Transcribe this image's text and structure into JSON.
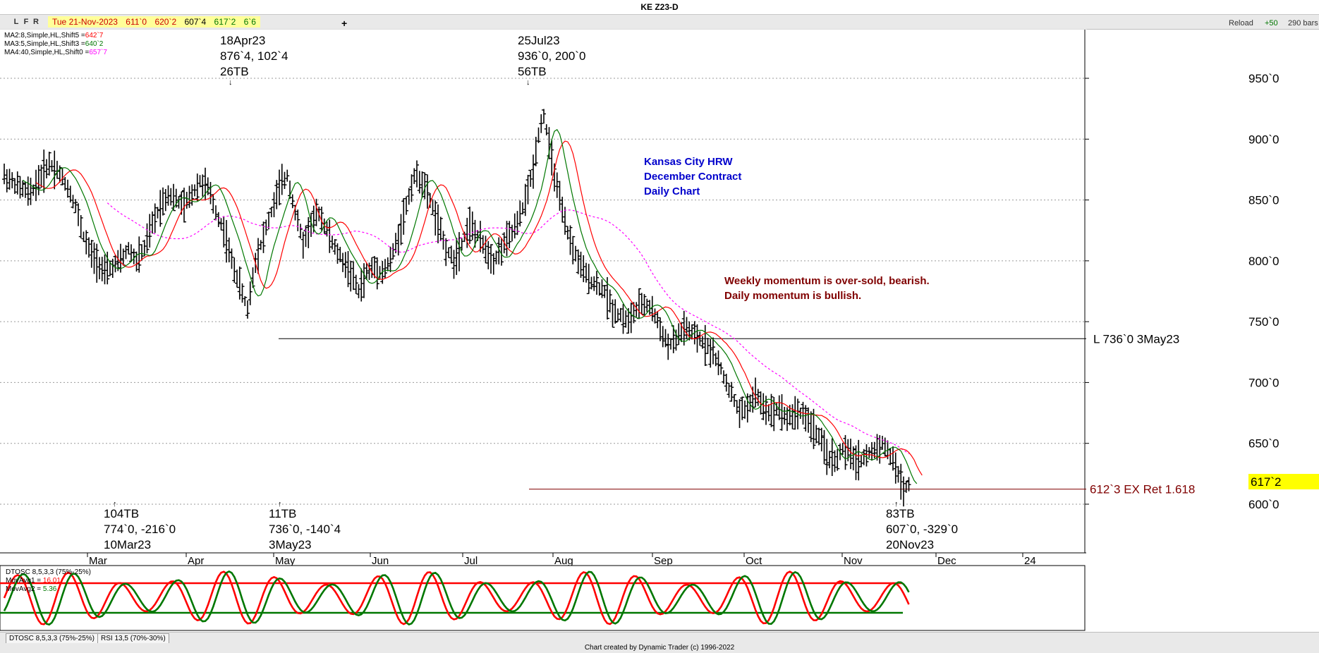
{
  "header": {
    "title": "KE Z23-D",
    "toolbar_buttons": [
      "L",
      "F",
      "R"
    ],
    "quote_date": "Tue 21-Nov-2023",
    "quote_open": "611`0",
    "quote_high": "620`2",
    "quote_low": "607`4",
    "quote_close": "617`2",
    "quote_change": "6`6",
    "plus_tab": "+",
    "reload": "Reload",
    "plus50": "+50",
    "bars": "290 bars"
  },
  "legend": {
    "ma2": "MA2:8,Simple,HL,Shift5 =",
    "ma2_val": "642`7",
    "ma3": "MA3:5,Simple,HL,Shift3 =",
    "ma3_val": "640`2",
    "ma4": "MA4:40,Simple,HL,Shift0 =",
    "ma4_val": "657`7"
  },
  "annotations": {
    "hi1_date": "18Apr23",
    "hi1_val": "876`4, 102`4",
    "hi1_tb": "26TB",
    "hi2_date": "25Jul23",
    "hi2_val": "936`0, 200`0",
    "hi2_tb": "56TB",
    "lo1_tb": "104TB",
    "lo1_val": "774`0, -216`0",
    "lo1_date": "10Mar23",
    "lo2_tb": "11TB",
    "lo2_val": "736`0, -140`4",
    "lo2_date": "3May23",
    "lo3_tb": "83TB",
    "lo3_val": "607`0, -329`0",
    "lo3_date": "20Nov23",
    "title1": "Kansas City HRW",
    "title2": "December Contract",
    "title3": "Daily Chart",
    "comment1": "Weekly momentum is over-sold, bearish.",
    "comment2": "Daily momentum is bullish.",
    "line_low_label": "L 736`0 3May23",
    "line_ret_label": "612`3 EX Ret 1.618",
    "last_price": "617`2"
  },
  "oscillator": {
    "title": "DTOSC 8,5,3,3 (75%-25%)",
    "mov1": "MovAvg1 = ",
    "mov1_val": "16.01",
    "mov2": "MovAvg2 = ",
    "mov2_val": "5.36",
    "tab1": "DTOSC 8,5,3,3 (75%-25%)",
    "tab2": "RSI 13,5 (70%-30%)"
  },
  "footer": "Chart created by Dynamic Trader  (c)  1996-2022",
  "colors": {
    "ma2": "#ff0000",
    "ma3": "#007700",
    "ma4": "#ff00ff",
    "text_blue": "#0000cc",
    "text_maroon": "#800000",
    "last_price_bg": "#ffff00"
  },
  "chart_data": {
    "type": "ohlc",
    "title": "KE Z23-D",
    "ylim": [
      560,
      990
    ],
    "y_ticks": [
      "600`0",
      "650`0",
      "700`0",
      "750`0",
      "800`0",
      "850`0",
      "900`0",
      "950`0"
    ],
    "y_tick_values": [
      600,
      650,
      700,
      750,
      800,
      850,
      900,
      950
    ],
    "x_tick_labels": [
      "Mar",
      "Apr",
      "May",
      "Jun",
      "Jul",
      "Aug",
      "Sep",
      "Oct",
      "Nov",
      "Dec",
      "24"
    ],
    "horizontal_lines": [
      {
        "value": 736,
        "label": "L 736`0 3May23"
      },
      {
        "value": 612.4,
        "label": "612`3 EX Ret 1.618"
      }
    ],
    "price_path": [
      [
        0,
        870
      ],
      [
        6,
        860
      ],
      [
        10,
        855
      ],
      [
        14,
        870
      ],
      [
        17,
        880
      ],
      [
        20,
        875
      ],
      [
        24,
        860
      ],
      [
        27,
        845
      ],
      [
        30,
        820
      ],
      [
        33,
        805
      ],
      [
        35,
        800
      ],
      [
        38,
        790
      ],
      [
        41,
        795
      ],
      [
        44,
        800
      ],
      [
        47,
        810
      ],
      [
        50,
        800
      ],
      [
        53,
        810
      ],
      [
        56,
        830
      ],
      [
        59,
        845
      ],
      [
        62,
        855
      ],
      [
        65,
        850
      ],
      [
        68,
        845
      ],
      [
        71,
        855
      ],
      [
        74,
        865
      ],
      [
        77,
        860
      ],
      [
        80,
        840
      ],
      [
        83,
        825
      ],
      [
        86,
        800
      ],
      [
        89,
        780
      ],
      [
        92,
        760
      ],
      [
        95,
        800
      ],
      [
        98,
        820
      ],
      [
        101,
        840
      ],
      [
        104,
        860
      ],
      [
        107,
        870
      ],
      [
        110,
        840
      ],
      [
        113,
        815
      ],
      [
        116,
        830
      ],
      [
        119,
        840
      ],
      [
        122,
        825
      ],
      [
        125,
        810
      ],
      [
        128,
        800
      ],
      [
        131,
        790
      ],
      [
        134,
        775
      ],
      [
        137,
        790
      ],
      [
        140,
        795
      ],
      [
        143,
        790
      ],
      [
        146,
        800
      ],
      [
        149,
        820
      ],
      [
        152,
        845
      ],
      [
        155,
        870
      ],
      [
        158,
        865
      ],
      [
        161,
        850
      ],
      [
        164,
        830
      ],
      [
        167,
        810
      ],
      [
        170,
        800
      ],
      [
        173,
        815
      ],
      [
        176,
        830
      ],
      [
        179,
        820
      ],
      [
        182,
        810
      ],
      [
        185,
        800
      ],
      [
        188,
        810
      ],
      [
        191,
        820
      ],
      [
        194,
        830
      ],
      [
        197,
        850
      ],
      [
        200,
        875
      ],
      [
        202,
        905
      ],
      [
        204,
        920
      ],
      [
        206,
        895
      ],
      [
        209,
        860
      ],
      [
        212,
        830
      ],
      [
        215,
        810
      ],
      [
        218,
        795
      ],
      [
        221,
        785
      ],
      [
        224,
        780
      ],
      [
        227,
        775
      ],
      [
        230,
        760
      ],
      [
        233,
        755
      ],
      [
        236,
        750
      ],
      [
        239,
        760
      ],
      [
        242,
        765
      ],
      [
        245,
        760
      ],
      [
        248,
        745
      ],
      [
        251,
        730
      ],
      [
        254,
        735
      ],
      [
        257,
        745
      ],
      [
        260,
        740
      ],
      [
        263,
        735
      ],
      [
        266,
        730
      ],
      [
        269,
        720
      ],
      [
        272,
        705
      ],
      [
        275,
        690
      ],
      [
        278,
        675
      ],
      [
        281,
        680
      ],
      [
        284,
        690
      ],
      [
        287,
        680
      ],
      [
        290,
        675
      ],
      [
        293,
        680
      ],
      [
        296,
        670
      ],
      [
        299,
        675
      ],
      [
        302,
        675
      ],
      [
        305,
        665
      ],
      [
        308,
        655
      ],
      [
        311,
        640
      ],
      [
        314,
        635
      ],
      [
        317,
        645
      ],
      [
        320,
        640
      ],
      [
        323,
        635
      ],
      [
        326,
        640
      ],
      [
        329,
        645
      ],
      [
        332,
        650
      ],
      [
        335,
        640
      ],
      [
        338,
        625
      ],
      [
        340,
        612
      ],
      [
        342,
        617
      ]
    ]
  }
}
